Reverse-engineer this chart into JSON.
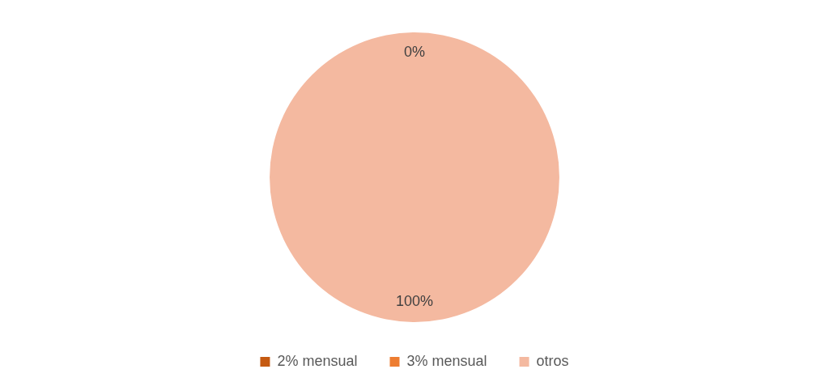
{
  "chart_data": {
    "type": "pie",
    "categories": [
      "2% mensual",
      "3% mensual",
      "otros"
    ],
    "values": [
      0,
      0,
      100
    ],
    "colors": [
      "#c55a11",
      "#ed7d31",
      "#f4b9a0"
    ],
    "value_labels": [
      null,
      "0%",
      "100%"
    ],
    "legend": "bottom"
  }
}
